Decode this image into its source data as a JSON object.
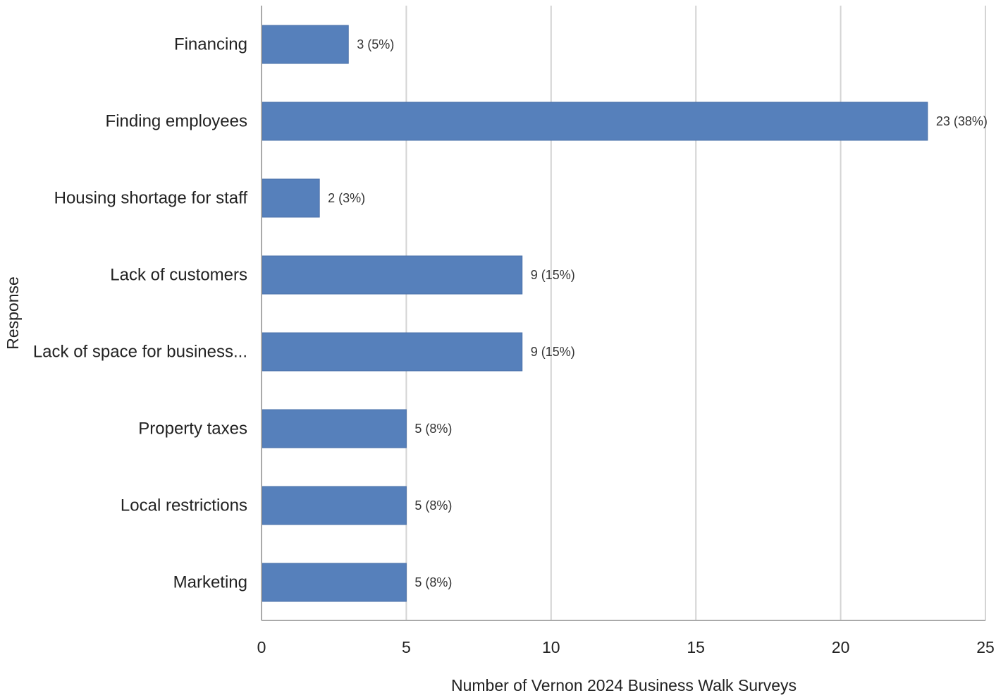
{
  "chart_data": {
    "type": "bar",
    "orientation": "horizontal",
    "categories": [
      "Financing",
      "Finding employees",
      "Housing shortage for staff",
      "Lack of customers",
      "Lack of space for business...",
      "Property taxes",
      "Local restrictions",
      "Marketing"
    ],
    "values": [
      3,
      23,
      2,
      9,
      9,
      5,
      5,
      5
    ],
    "data_labels": [
      "3 (5%)",
      "23 (38%)",
      "2 (3%)",
      "9 (15%)",
      "9 (15%)",
      "5 (8%)",
      "5 (8%)",
      "5 (8%)"
    ],
    "title": "",
    "xlabel": "Number of Vernon 2024 Business Walk Surveys",
    "ylabel": "Response",
    "xlim": [
      0,
      25
    ],
    "xticks": [
      0,
      5,
      10,
      15,
      20,
      25
    ],
    "grid": "vertical",
    "legend": "none",
    "bar_color": "#5680bb",
    "grid_color": "#d4d4d4",
    "axis_color": "#aaaaaa"
  }
}
